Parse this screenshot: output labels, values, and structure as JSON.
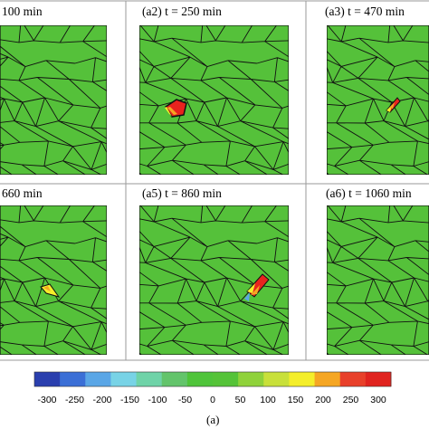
{
  "panels": [
    {
      "title": "100 min",
      "hotspot": null
    },
    {
      "title": "(a2)  t = 250 min",
      "hotspot": "a2"
    },
    {
      "title": "(a3)  t = 470 min",
      "hotspot": "a3"
    },
    {
      "title": "660 min",
      "hotspot": "a4"
    },
    {
      "title": "(a5)  t = 860 min",
      "hotspot": "a5"
    },
    {
      "title": "(a6)  t = 1060 min",
      "hotspot": null
    }
  ],
  "colorbar": {
    "ticks": [
      "-300",
      "-250",
      "-200",
      "-150",
      "-100",
      "-50",
      "0",
      "50",
      "100",
      "150",
      "200",
      "250",
      "300"
    ],
    "colors": [
      "#2a3fae",
      "#3b6fd6",
      "#5aa6e6",
      "#78d3e6",
      "#6fd3a8",
      "#63c46b",
      "#4fc43a",
      "#55c338",
      "#8fd23a",
      "#c8e03a",
      "#f4ee2a",
      "#f5a623",
      "#e8402a",
      "#e0231f"
    ]
  },
  "figure_label": "(a)",
  "colors": {
    "grain_fill": "#55c13a",
    "grain_edge": "#111111",
    "frame": "#999999"
  }
}
